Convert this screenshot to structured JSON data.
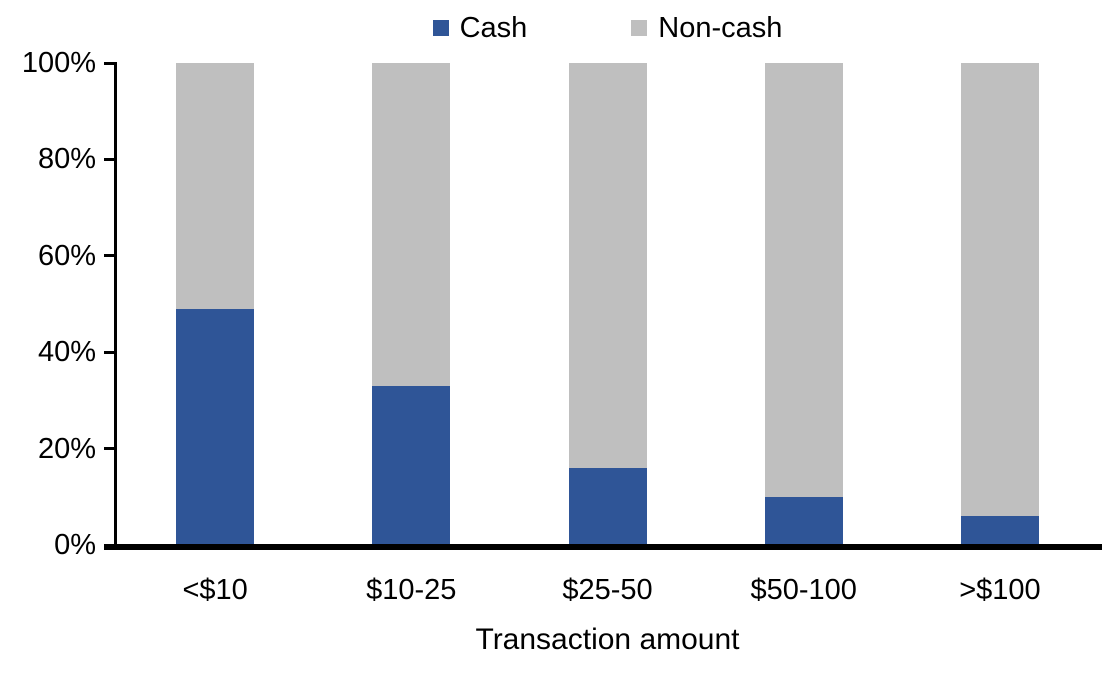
{
  "chart_data": {
    "type": "bar",
    "stacked": true,
    "orientation": "vertical",
    "categories": [
      "<$10",
      "$10-25",
      "$25-50",
      "$50-100",
      ">$100"
    ],
    "series": [
      {
        "name": "Cash",
        "color": "#2F5597",
        "values": [
          49,
          33,
          16,
          10,
          6
        ]
      },
      {
        "name": "Non-cash",
        "color": "#BFBFBF",
        "values": [
          51,
          67,
          84,
          90,
          94
        ]
      }
    ],
    "title": "",
    "xlabel": "Transaction amount",
    "ylabel": "",
    "ylim": [
      0,
      100
    ],
    "yticks": [
      "0%",
      "20%",
      "40%",
      "60%",
      "80%",
      "100%"
    ],
    "legend_position": "top",
    "grid": false
  },
  "colors": {
    "axis": "#000000",
    "text": "#000000",
    "background": "#FFFFFF"
  }
}
